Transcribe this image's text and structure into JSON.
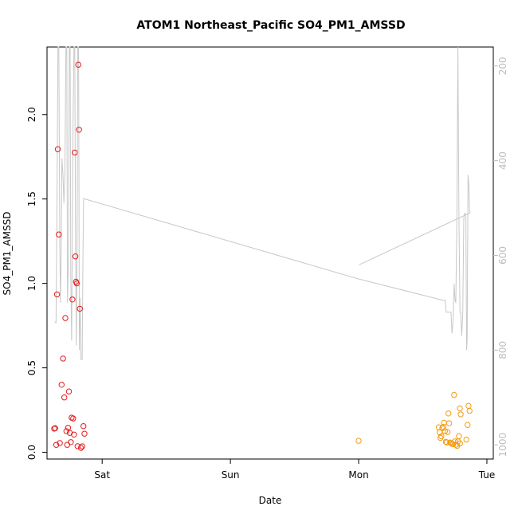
{
  "chart_data": {
    "type": "scatter",
    "title": "ATOM1 Northeast_Pacific SO4_PM1_AMSSD",
    "xlabel": "Date",
    "ylabel": "SO4_PM1_AMSSD",
    "x_unit": "days since Sat 00:00",
    "xlim": [
      -0.43,
      3.05
    ],
    "x_ticks": [
      {
        "label": "Sat",
        "value": 0
      },
      {
        "label": "Sun",
        "value": 1
      },
      {
        "label": "Mon",
        "value": 2
      },
      {
        "label": "Tue",
        "value": 3
      }
    ],
    "ylim": [
      -0.04,
      2.4
    ],
    "y_ticks": [
      "0.0",
      "0.5",
      "1.0",
      "1.5",
      "2.0"
    ],
    "y2_reversed": true,
    "y2lim": [
      1030,
      160
    ],
    "y2_ticks": [
      "200",
      "400",
      "600",
      "800",
      "1000"
    ],
    "grid": false,
    "legend": "none",
    "colors": {
      "series1": "#e41a1c",
      "series2": "#f39c12",
      "line": "#c8c8c8",
      "right_axis": "#bdbdbd"
    },
    "series": [
      {
        "color": "#e41a1c",
        "marker": "open-circle",
        "points": [
          [
            -0.374,
            0.14
          ],
          [
            -0.366,
            0.143
          ],
          [
            -0.358,
            0.044
          ],
          [
            -0.352,
            0.935
          ],
          [
            -0.346,
            1.795
          ],
          [
            -0.338,
            1.29
          ],
          [
            -0.33,
            0.055
          ],
          [
            -0.316,
            0.4
          ],
          [
            -0.305,
            0.555
          ],
          [
            -0.295,
            0.325
          ],
          [
            -0.287,
            0.795
          ],
          [
            -0.279,
            0.125
          ],
          [
            -0.273,
            0.044
          ],
          [
            -0.266,
            0.145
          ],
          [
            -0.259,
            0.36
          ],
          [
            -0.252,
            0.115
          ],
          [
            -0.244,
            0.06
          ],
          [
            -0.238,
            0.205
          ],
          [
            -0.232,
            0.905
          ],
          [
            -0.226,
            0.2
          ],
          [
            -0.22,
            0.105
          ],
          [
            -0.214,
            1.775
          ],
          [
            -0.209,
            1.16
          ],
          [
            -0.204,
            1.01
          ],
          [
            -0.198,
            1.0
          ],
          [
            -0.192,
            0.036
          ],
          [
            -0.186,
            2.295
          ],
          [
            -0.18,
            1.91
          ],
          [
            -0.174,
            0.85
          ],
          [
            -0.166,
            0.026
          ],
          [
            -0.155,
            0.035
          ],
          [
            -0.146,
            0.155
          ],
          [
            -0.138,
            0.11
          ]
        ]
      },
      {
        "color": "#f39c12",
        "marker": "open-circle",
        "points": [
          [
            2.0,
            0.068
          ],
          [
            2.625,
            0.148
          ],
          [
            2.632,
            0.118
          ],
          [
            2.638,
            0.085
          ],
          [
            2.645,
            0.095
          ],
          [
            2.652,
            0.142
          ],
          [
            2.659,
            0.15
          ],
          [
            2.666,
            0.175
          ],
          [
            2.673,
            0.125
          ],
          [
            2.68,
            0.062
          ],
          [
            2.687,
            0.058
          ],
          [
            2.694,
            0.12
          ],
          [
            2.7,
            0.23
          ],
          [
            2.706,
            0.172
          ],
          [
            2.713,
            0.058
          ],
          [
            2.72,
            0.055
          ],
          [
            2.728,
            0.05
          ],
          [
            2.736,
            0.048
          ],
          [
            2.744,
            0.34
          ],
          [
            2.752,
            0.065
          ],
          [
            2.76,
            0.045
          ],
          [
            2.768,
            0.038
          ],
          [
            2.775,
            0.065
          ],
          [
            2.782,
            0.095
          ],
          [
            2.789,
            0.26
          ],
          [
            2.796,
            0.225
          ],
          [
            2.84,
            0.075
          ],
          [
            2.85,
            0.162
          ],
          [
            2.857,
            0.275
          ],
          [
            2.865,
            0.245
          ],
          [
            2.79,
            0.052
          ]
        ]
      }
    ],
    "line_series": {
      "axis": "right",
      "color": "#c8c8c8",
      "points": [
        [
          -0.37,
          740
        ],
        [
          -0.36,
          742
        ],
        [
          -0.352,
          460
        ],
        [
          -0.345,
          160
        ],
        [
          -0.338,
          160
        ],
        [
          -0.33,
          590
        ],
        [
          -0.325,
          700
        ],
        [
          -0.32,
          600
        ],
        [
          -0.314,
          395
        ],
        [
          -0.306,
          430
        ],
        [
          -0.298,
          490
        ],
        [
          -0.29,
          420
        ],
        [
          -0.283,
          160
        ],
        [
          -0.276,
          160
        ],
        [
          -0.27,
          700
        ],
        [
          -0.262,
          600
        ],
        [
          -0.256,
          160
        ],
        [
          -0.25,
          160
        ],
        [
          -0.245,
          640
        ],
        [
          -0.238,
          780
        ],
        [
          -0.232,
          520
        ],
        [
          -0.226,
          300
        ],
        [
          -0.22,
          160
        ],
        [
          -0.214,
          160
        ],
        [
          -0.208,
          520
        ],
        [
          -0.202,
          790
        ],
        [
          -0.196,
          600
        ],
        [
          -0.19,
          160
        ],
        [
          -0.184,
          160
        ],
        [
          -0.178,
          800
        ],
        [
          -0.172,
          690
        ],
        [
          -0.165,
          820
        ],
        [
          -0.156,
          820
        ],
        [
          -0.15,
          600
        ],
        [
          -0.145,
          480
        ],
        [
          1.99,
          649
        ],
        [
          2.66,
          695
        ],
        [
          2.675,
          695
        ],
        [
          2.683,
          720
        ],
        [
          2.72,
          720
        ],
        [
          2.728,
          765
        ],
        [
          2.736,
          740
        ],
        [
          2.744,
          660
        ],
        [
          2.752,
          695
        ],
        [
          2.758,
          700
        ],
        [
          2.766,
          515
        ],
        [
          2.774,
          160
        ],
        [
          2.782,
          520
        ],
        [
          2.79,
          720
        ],
        [
          2.796,
          720
        ],
        [
          2.804,
          770
        ],
        [
          2.812,
          720
        ],
        [
          2.82,
          520
        ],
        [
          2.828,
          510
        ],
        [
          2.836,
          520
        ],
        [
          2.842,
          800
        ],
        [
          2.846,
          780
        ],
        [
          2.853,
          430
        ],
        [
          2.86,
          455
        ],
        [
          2.865,
          505
        ],
        [
          2.87,
          510
        ],
        [
          2.003,
          620
        ]
      ]
    }
  }
}
